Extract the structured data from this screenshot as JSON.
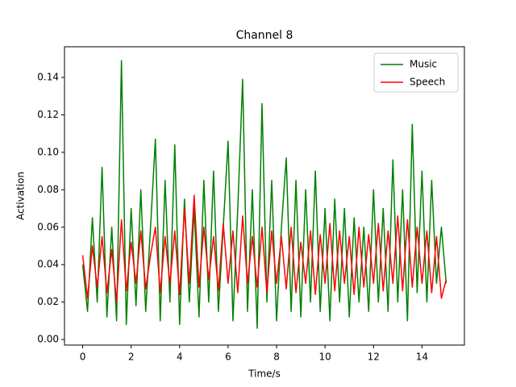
{
  "chart_data": {
    "type": "line",
    "title": "Channel 8",
    "xlabel": "Time/s",
    "ylabel": "Activation",
    "x": [
      0,
      0.2,
      0.4,
      0.6,
      0.8,
      1,
      1.2,
      1.4,
      1.6,
      1.8,
      2,
      2.2,
      2.4,
      2.6,
      2.8,
      3,
      3.2,
      3.4,
      3.6,
      3.8,
      4,
      4.2,
      4.4,
      4.6,
      4.8,
      5,
      5.2,
      5.4,
      5.6,
      5.8,
      6,
      6.2,
      6.4,
      6.6,
      6.8,
      7,
      7.2,
      7.4,
      7.6,
      7.8,
      8,
      8.2,
      8.4,
      8.6,
      8.8,
      9,
      9.2,
      9.4,
      9.6,
      9.8,
      10,
      10.2,
      10.4,
      10.6,
      10.8,
      11,
      11.2,
      11.4,
      11.6,
      11.8,
      12,
      12.2,
      12.4,
      12.6,
      12.8,
      13,
      13.2,
      13.4,
      13.6,
      13.8,
      14,
      14.2,
      14.4,
      14.6,
      14.8,
      15
    ],
    "series": [
      {
        "name": "Music",
        "color": "#008000",
        "values": [
          0.04,
          0.015,
          0.065,
          0.02,
          0.092,
          0.012,
          0.06,
          0.01,
          0.149,
          0.008,
          0.07,
          0.018,
          0.08,
          0.015,
          0.06,
          0.107,
          0.01,
          0.085,
          0.02,
          0.104,
          0.008,
          0.075,
          0.02,
          0.07,
          0.012,
          0.085,
          0.02,
          0.09,
          0.015,
          0.06,
          0.106,
          0.01,
          0.07,
          0.139,
          0.015,
          0.08,
          0.006,
          0.126,
          0.02,
          0.085,
          0.01,
          0.06,
          0.097,
          0.015,
          0.085,
          0.012,
          0.08,
          0.02,
          0.09,
          0.015,
          0.07,
          0.01,
          0.075,
          0.02,
          0.07,
          0.012,
          0.065,
          0.02,
          0.06,
          0.015,
          0.08,
          0.02,
          0.07,
          0.015,
          0.096,
          0.02,
          0.08,
          0.01,
          0.115,
          0.025,
          0.09,
          0.02,
          0.085,
          0.03,
          0.06,
          0.03
        ]
      },
      {
        "name": "Speech",
        "color": "#ff0000",
        "values": [
          0.045,
          0.022,
          0.05,
          0.028,
          0.055,
          0.025,
          0.048,
          0.02,
          0.064,
          0.026,
          0.052,
          0.03,
          0.058,
          0.027,
          0.045,
          0.06,
          0.025,
          0.055,
          0.03,
          0.058,
          0.024,
          0.07,
          0.03,
          0.077,
          0.028,
          0.06,
          0.032,
          0.055,
          0.026,
          0.062,
          0.03,
          0.058,
          0.025,
          0.066,
          0.03,
          0.055,
          0.028,
          0.06,
          0.025,
          0.058,
          0.03,
          0.055,
          0.027,
          0.06,
          0.025,
          0.052,
          0.03,
          0.058,
          0.024,
          0.056,
          0.03,
          0.062,
          0.026,
          0.058,
          0.03,
          0.055,
          0.024,
          0.06,
          0.028,
          0.056,
          0.03,
          0.062,
          0.026,
          0.058,
          0.03,
          0.066,
          0.026,
          0.064,
          0.028,
          0.06,
          0.03,
          0.058,
          0.025,
          0.055,
          0.022,
          0.032
        ]
      }
    ],
    "xlim": [
      -0.75,
      15.75
    ],
    "xticks": [
      0,
      2,
      4,
      6,
      8,
      10,
      12,
      14
    ],
    "ylim": [
      -0.003,
      0.1564
    ],
    "yticks": [
      {
        "value": 0,
        "label": "0.00"
      },
      {
        "value": 0.02,
        "label": "0.02"
      },
      {
        "value": 0.04,
        "label": "0.04"
      },
      {
        "value": 0.06,
        "label": "0.06"
      },
      {
        "value": 0.08,
        "label": "0.08"
      },
      {
        "value": 0.1,
        "label": "0.10"
      },
      {
        "value": 0.12,
        "label": "0.12"
      },
      {
        "value": 0.14,
        "label": "0.14"
      }
    ],
    "legend": "upper right"
  }
}
